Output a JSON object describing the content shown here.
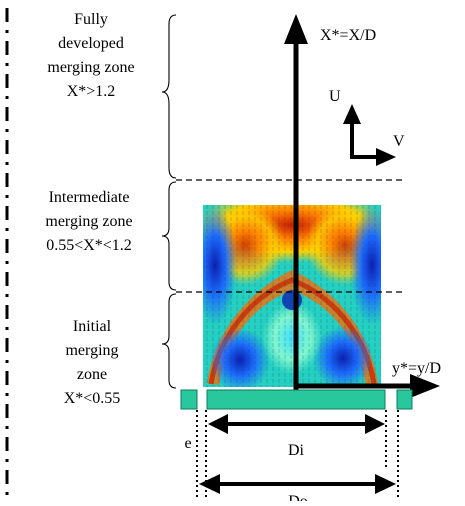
{
  "zones": [
    {
      "lines": [
        "Fully",
        "developed",
        "merging zone",
        "X*>1.2"
      ]
    },
    {
      "lines": [
        "Intermediate",
        "merging zone",
        "0.55<X*<1.2"
      ]
    },
    {
      "lines": [
        "Initial",
        "merging",
        "zone",
        "X*<0.55"
      ]
    }
  ],
  "axes": {
    "x_label": "X*=X/D",
    "y_label": "y*=y/D",
    "u_label": "U",
    "v_label": "V"
  },
  "dimensions": {
    "e_label": "e",
    "di_label": "Di",
    "do_label": "Do"
  },
  "colors": {
    "nozzle": "#28c79c",
    "nozzle_edge": "#0b7d5c",
    "contour_low": "#0a1fb3",
    "contour_high": "#c81e00"
  }
}
